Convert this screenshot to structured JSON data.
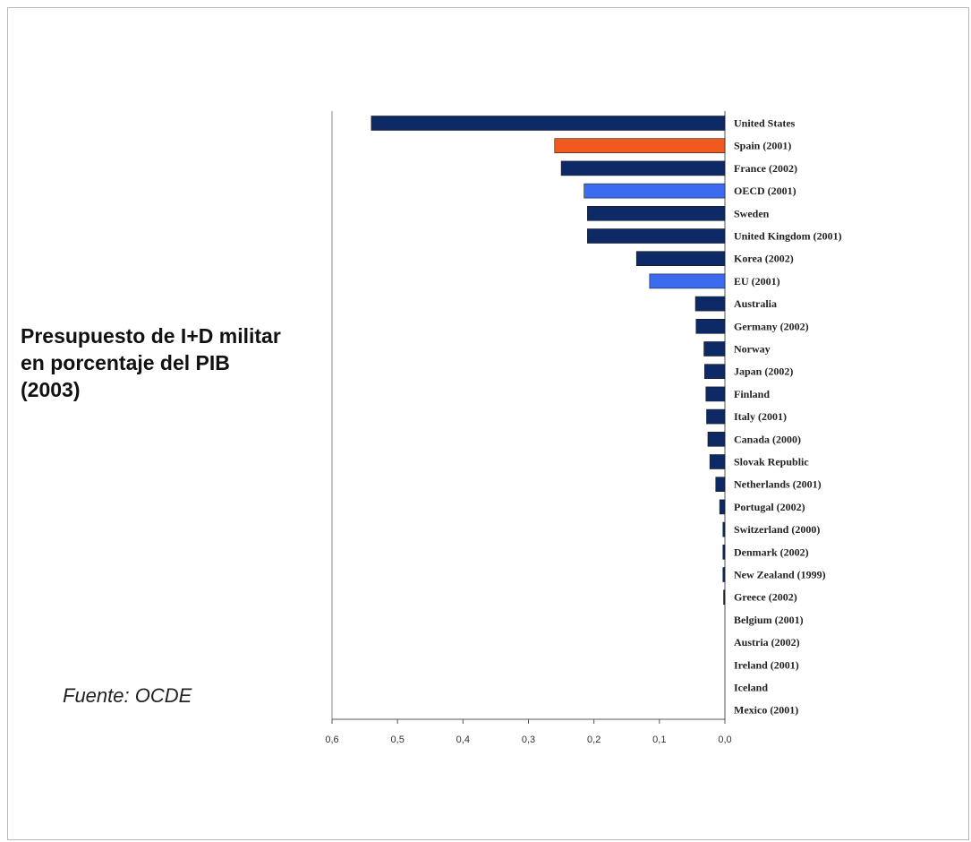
{
  "text": {
    "title_lines": [
      "Presupuesto de I+D militar",
      "en porcentaje del PIB",
      "(2003)"
    ],
    "source": "Fuente: OCDE"
  },
  "colors": {
    "country": "#0e2a66",
    "spain": "#f05a1e",
    "aggregate": "#3b6cf0",
    "axis": "#555555"
  },
  "chart_data": {
    "type": "bar",
    "orientation": "horizontal",
    "x_direction": "reversed",
    "xlim": [
      0,
      0.6
    ],
    "xticks": [
      0.6,
      0.5,
      0.4,
      0.3,
      0.2,
      0.1,
      0.0
    ],
    "xtick_labels": [
      "0,6",
      "0,5",
      "0,4",
      "0,3",
      "0,2",
      "0,1",
      "0,0"
    ],
    "categories": [
      "United States",
      "Spain (2001)",
      "France (2002)",
      "OECD (2001)",
      "Sweden",
      "United Kingdom (2001)",
      "Korea (2002)",
      "EU (2001)",
      "Australia",
      "Germany (2002)",
      "Norway",
      "Japan (2002)",
      "Finland",
      "Italy (2001)",
      "Canada (2000)",
      "Slovak Republic",
      "Netherlands (2001)",
      "Portugal (2002)",
      "Switzerland (2000)",
      "Denmark (2002)",
      "New Zealand (1999)",
      "Greece (2002)",
      "Belgium (2001)",
      "Austria (2002)",
      "Ireland (2001)",
      "Iceland",
      "Mexico (2001)"
    ],
    "values": [
      0.54,
      0.26,
      0.25,
      0.215,
      0.21,
      0.21,
      0.135,
      0.115,
      0.045,
      0.044,
      0.032,
      0.031,
      0.029,
      0.028,
      0.026,
      0.023,
      0.014,
      0.008,
      0.003,
      0.003,
      0.003,
      0.002,
      0.0,
      0.0,
      0.0,
      0.0,
      0.0
    ],
    "bar_kind": [
      "country",
      "spain",
      "country",
      "aggregate",
      "country",
      "country",
      "country",
      "aggregate",
      "country",
      "country",
      "country",
      "country",
      "country",
      "country",
      "country",
      "country",
      "country",
      "country",
      "country",
      "country",
      "country",
      "country",
      "country",
      "country",
      "country",
      "country",
      "country"
    ]
  }
}
